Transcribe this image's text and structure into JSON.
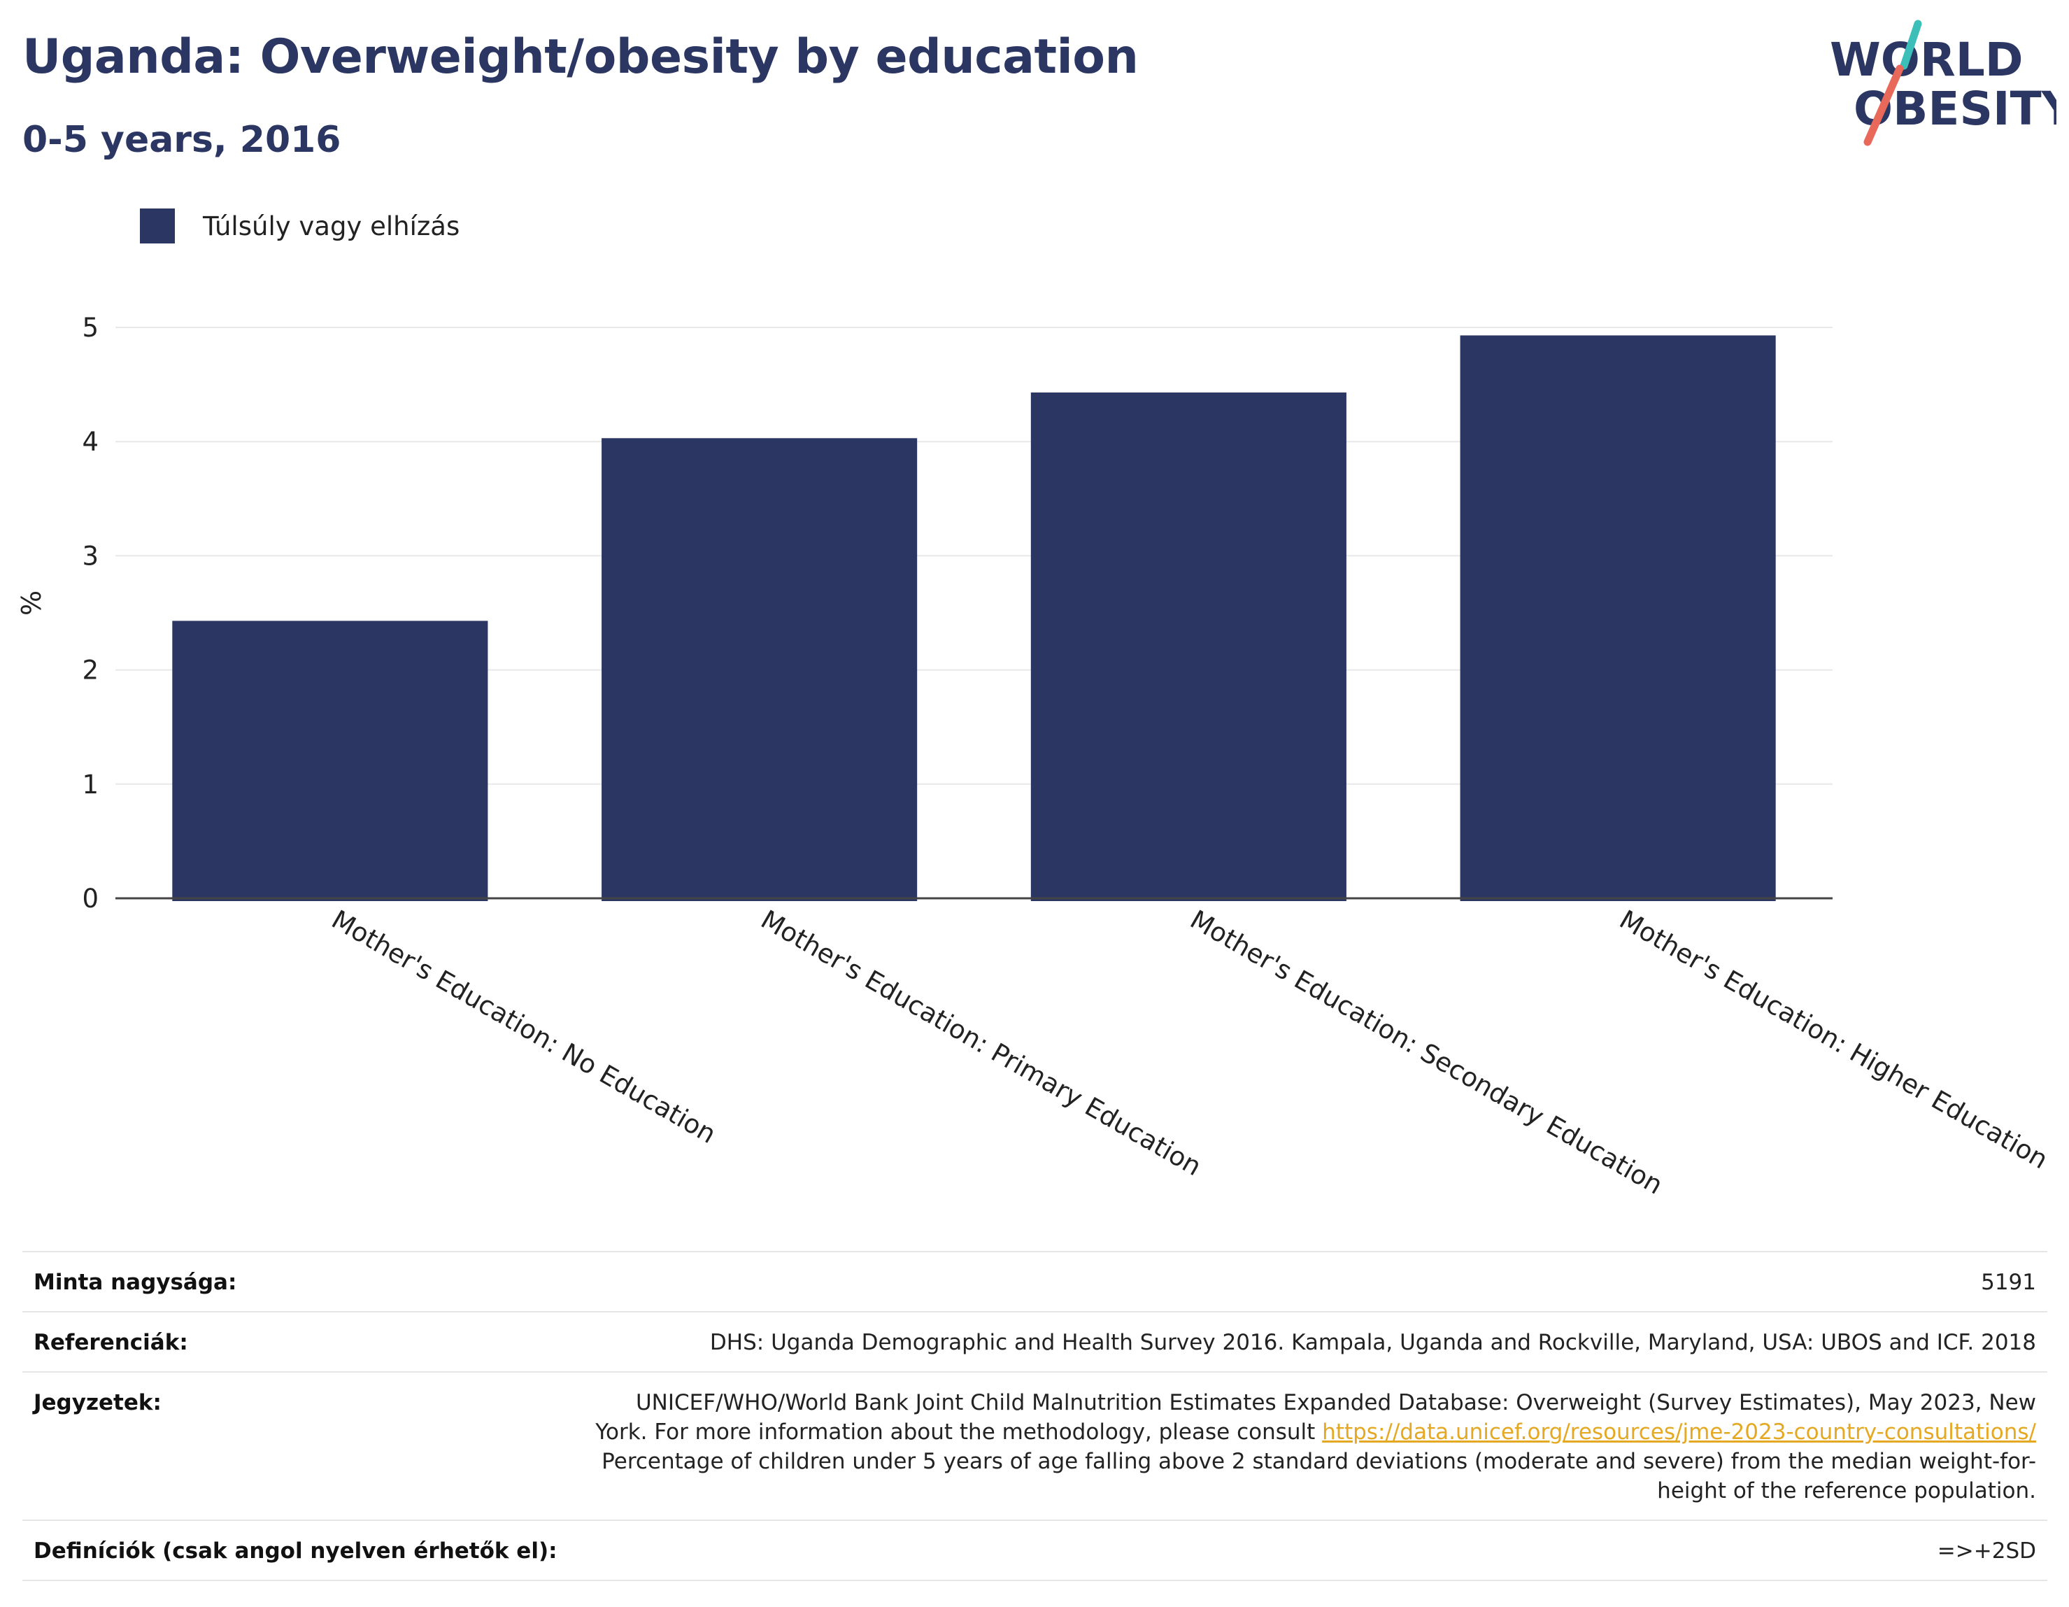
{
  "title": "Uganda: Overweight/obesity by education",
  "subtitle": "0-5 years, 2016",
  "logo": {
    "line1": "WORLD",
    "line2": "OBESITY",
    "colors": {
      "text": "#2b3762",
      "teal": "#3bbfb8",
      "coral": "#e8685a"
    }
  },
  "legend": {
    "label": "Túlsúly vagy elhízás",
    "color": "#2b3762"
  },
  "chart_data": {
    "type": "bar",
    "categories": [
      "Mother's Education: No Education",
      "Mother's Education: Primary Education",
      "Mother's Education: Secondary Education",
      "Mother's Education: Higher Education"
    ],
    "series": [
      {
        "name": "Túlsúly vagy elhízás",
        "values": [
          2.43,
          4.03,
          4.43,
          4.93
        ],
        "color": "#2b3762"
      }
    ],
    "ylabel": "%",
    "ylim": [
      0,
      5
    ],
    "yticks": [
      0,
      1,
      2,
      3,
      4,
      5
    ],
    "grid": true,
    "legend_position": "top-left"
  },
  "info": {
    "sample": {
      "label": "Minta nagysága:",
      "value": "5191"
    },
    "references": {
      "label": "Referenciák:",
      "value": "DHS: Uganda Demographic and Health Survey 2016. Kampala, Uganda and Rockville, Maryland, USA: UBOS and ICF. 2018"
    },
    "notes": {
      "label": "Jegyzetek:",
      "line1": "UNICEF/WHO/World Bank Joint Child Malnutrition Estimates Expanded Database: Overweight (Survey Estimates), May 2023, New",
      "line2": "York. For more information about the methodology, please consult",
      "link": "https://data.unicef.org/resources/jme-2023-country-consultations/",
      "line3": "Percentage of children under 5 years of age falling above 2 standard deviations (moderate and severe) from the median weight-for-",
      "line4": "height of the reference population."
    },
    "definitions": {
      "label": "Definíciók (csak angol nyelven érhetők el):",
      "value": "=>+2SD"
    }
  }
}
